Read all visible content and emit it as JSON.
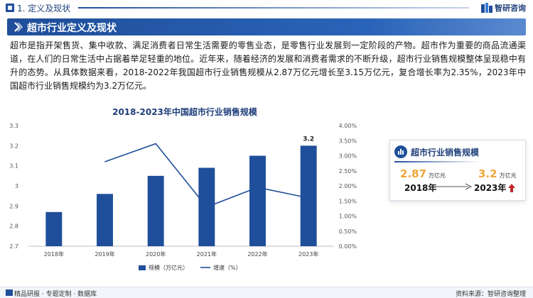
{
  "header": {
    "section_title": "1. 定义及现状",
    "brand_name": "智研咨询"
  },
  "banner": {
    "title": "超市行业定义及现状"
  },
  "intro": {
    "text": "超市是指开架售货、集中收款、满足消费者日常生活需要的零售业态，是零售行业发展到一定阶段的产物。超市作为重要的商品流通渠道，在人们的日常生活中占据着举足轻重的地位。近年来，随着经济的发展和消费者需求的不断升级，超市行业销售规模整体呈现稳中有升的态势。从具体数据来看，2018-2022年我国超市行业销售规模从2.87万亿元增长至3.15万亿元，复合增长率为2.35%，2023年中国超市行业销售规模约为3.2万亿元。"
  },
  "chart_data": {
    "type": "bar",
    "title": "2018-2023年中国超市行业销售规模",
    "categories": [
      "2018年",
      "2019年",
      "2020年",
      "2021年",
      "2022年",
      "2023年"
    ],
    "series": [
      {
        "name": "规模（万亿元）",
        "type": "bar",
        "axis": "left",
        "color": "#1f4e9a",
        "values": [
          2.87,
          2.96,
          3.05,
          3.09,
          3.15,
          3.2
        ]
      },
      {
        "name": "增速（%）",
        "type": "line",
        "axis": "right",
        "color": "#1f4e9a",
        "values": [
          null,
          2.8,
          3.4,
          1.3,
          1.95,
          1.6
        ]
      }
    ],
    "data_labels": [
      {
        "category": "2023年",
        "text": "3.2"
      }
    ],
    "y_left": {
      "lim": [
        2.7,
        3.3
      ],
      "ticks": [
        "2.7",
        "2.8",
        "2.9",
        "3",
        "3.1",
        "3.2",
        "3.3"
      ]
    },
    "y_right": {
      "lim": [
        0,
        4
      ],
      "ticks": [
        "0.00%",
        "0.50%",
        "1.00%",
        "1.50%",
        "2.00%",
        "2.50%",
        "3.00%",
        "3.50%",
        "4.00%"
      ]
    },
    "legend_position": "bottom",
    "grid": false
  },
  "card": {
    "title": "超市行业销售规模",
    "start_value": "2.87",
    "start_unit": "万亿元",
    "start_year": "2018年",
    "end_value": "3.2",
    "end_unit": "万亿元",
    "end_year": "2023年",
    "accent_color": "#f0a53a",
    "arrow_color": "#c0272d"
  },
  "footer": {
    "left_text": "精品研报 · 专题定制 · 数据库",
    "right_text": "资料来源：智研咨询整理"
  }
}
